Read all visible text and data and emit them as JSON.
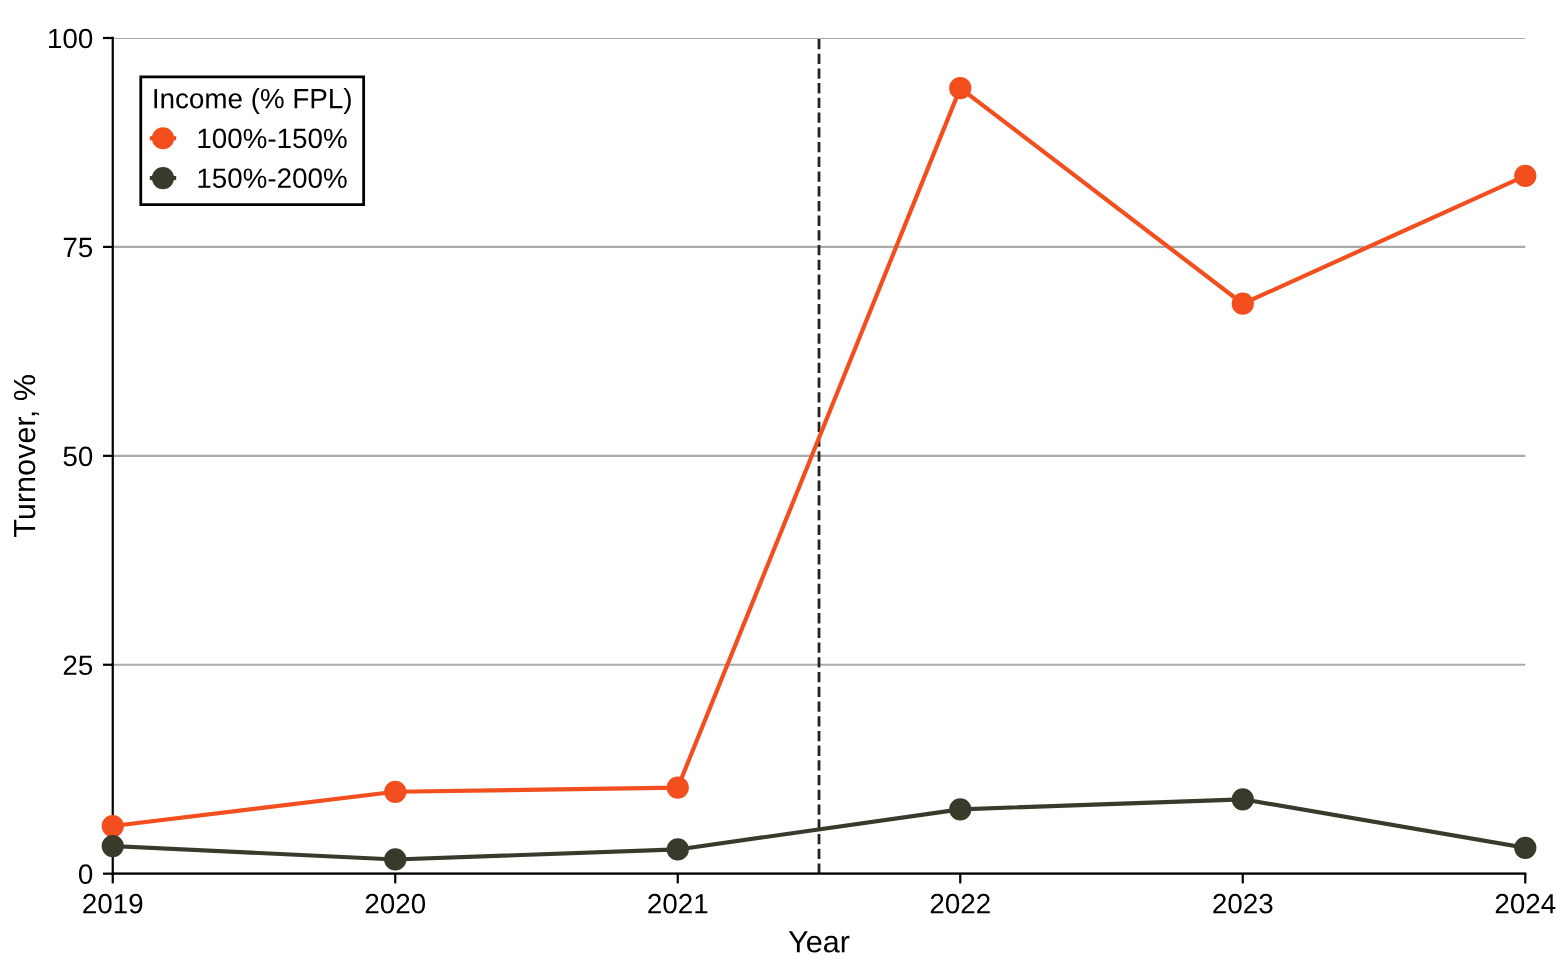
{
  "chart_data": {
    "type": "line",
    "xlabel": "Year",
    "ylabel": "Turnover, %",
    "legend_title": "Income (% FPL)",
    "x": [
      2019,
      2020,
      2021,
      2022,
      2023,
      2024
    ],
    "series": [
      {
        "name": "100%-150%",
        "color": "#f24e1e",
        "values": [
          5.7,
          9.8,
          10.3,
          94.0,
          68.2,
          83.5
        ]
      },
      {
        "name": "150%-200%",
        "color": "#3a3a2c",
        "values": [
          3.3,
          1.7,
          2.9,
          7.7,
          8.9,
          3.1
        ]
      }
    ],
    "xlim": [
      2019,
      2024
    ],
    "xticks": [
      2019,
      2020,
      2021,
      2022,
      2023,
      2024
    ],
    "ylim": [
      0,
      100
    ],
    "yticks": [
      0,
      25,
      50,
      75,
      100
    ],
    "ref_lines": [
      {
        "axis": "x",
        "value": 2021.5,
        "line_style": "dashed",
        "color": "#222222"
      }
    ],
    "grid": "y",
    "legend": "top left",
    "marker": "circle",
    "line_style": "solid"
  }
}
